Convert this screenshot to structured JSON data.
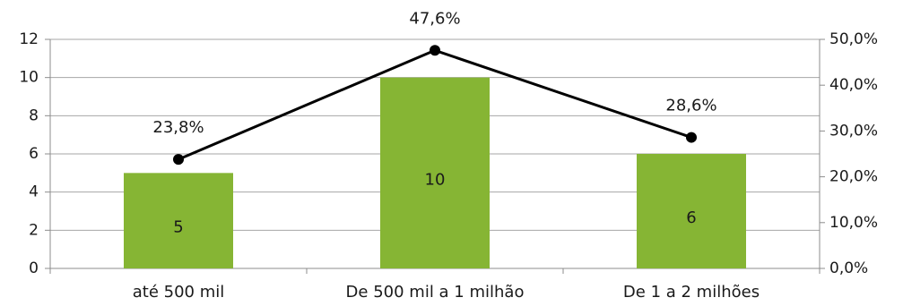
{
  "chart_data": {
    "type": "bar",
    "categories": [
      "até 500 mil",
      "De 500 mil a 1 milhão",
      "De 1 a 2 milhões"
    ],
    "series": [
      {
        "type": "bar",
        "axis": "left",
        "values": [
          5,
          10,
          6
        ],
        "value_labels": [
          "5",
          "10",
          "6"
        ],
        "color": "#86b534"
      },
      {
        "type": "line",
        "axis": "right",
        "values": [
          23.8,
          47.6,
          28.6
        ],
        "value_labels": [
          "23,8%",
          "47,6%",
          "28,6%"
        ],
        "color": "#000000"
      }
    ],
    "y_left": {
      "min": 0,
      "max": 12,
      "step": 2,
      "tick_labels": [
        "0",
        "2",
        "4",
        "6",
        "8",
        "10",
        "12"
      ]
    },
    "y_right": {
      "min": 0,
      "max": 50,
      "step": 10,
      "tick_labels": [
        "0,0%",
        "10,0%",
        "20,0%",
        "30,0%",
        "40,0%",
        "50,0%"
      ]
    },
    "grid": true,
    "legend": "none"
  }
}
